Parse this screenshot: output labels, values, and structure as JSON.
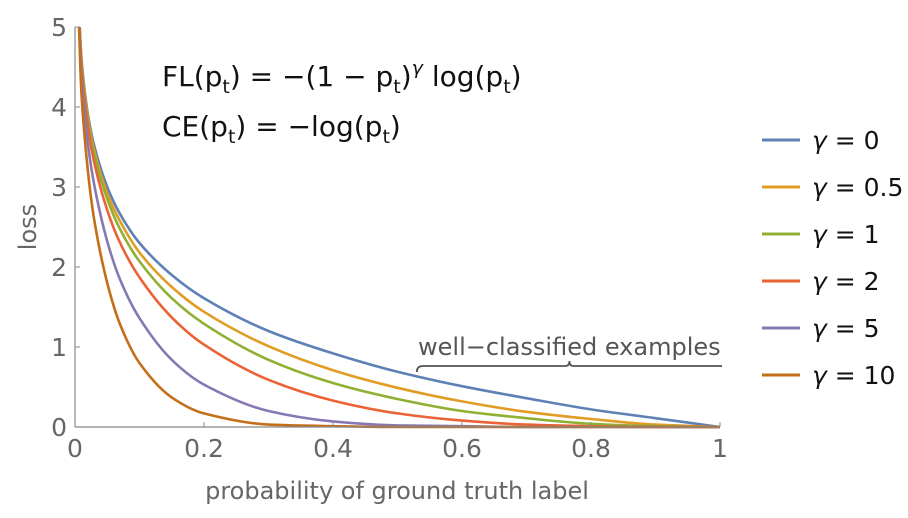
{
  "chart_data": {
    "type": "line",
    "xlabel": "probability of ground truth label",
    "ylabel": "loss",
    "xlim": [
      0,
      1
    ],
    "ylim": [
      0,
      5
    ],
    "x_ticks": [
      "0",
      "0.2",
      "0.4",
      "0.6",
      "0.8",
      "1"
    ],
    "y_ticks": [
      "0",
      "1",
      "2",
      "3",
      "4",
      "5"
    ],
    "grid": false,
    "legend_position": "right",
    "formulas": {
      "fl": {
        "lhs": "FL(p",
        "sub": "t",
        "mid": ") = −(1 − p",
        "sub2": "t",
        "paren": ")",
        "exp": "γ",
        "rhs": " log(p",
        "sub3": "t",
        "end": ")"
      },
      "ce": {
        "lhs": "CE(p",
        "sub": "t",
        "mid": ") = −log(p",
        "sub2": "t",
        "end": ")"
      }
    },
    "annotation": {
      "text": "well−classified examples",
      "x_range": [
        0.53,
        1.0
      ]
    },
    "x": [
      0.01,
      0.02,
      0.03,
      0.05,
      0.07,
      0.1,
      0.15,
      0.2,
      0.3,
      0.4,
      0.5,
      0.6,
      0.7,
      0.8,
      0.9,
      1.0
    ],
    "series": [
      {
        "name": "γ = 0",
        "color": "#5e81b5",
        "values": [
          4.61,
          3.91,
          3.51,
          3.0,
          2.66,
          2.3,
          1.9,
          1.61,
          1.2,
          0.92,
          0.69,
          0.51,
          0.36,
          0.22,
          0.11,
          0
        ]
      },
      {
        "name": "γ = 0.5",
        "color": "#e19c24",
        "values": [
          4.58,
          3.87,
          3.45,
          2.92,
          2.57,
          2.18,
          1.75,
          1.44,
          1.01,
          0.71,
          0.49,
          0.32,
          0.19,
          0.1,
          0.03,
          0
        ]
      },
      {
        "name": "γ = 1",
        "color": "#8fb032",
        "values": [
          4.56,
          3.83,
          3.4,
          2.85,
          2.47,
          2.07,
          1.61,
          1.29,
          0.84,
          0.55,
          0.35,
          0.2,
          0.11,
          0.04,
          0.01,
          0
        ]
      },
      {
        "name": "γ = 2",
        "color": "#eb6235",
        "values": [
          4.51,
          3.76,
          3.3,
          2.71,
          2.3,
          1.87,
          1.37,
          1.03,
          0.59,
          0.33,
          0.17,
          0.08,
          0.03,
          0.01,
          0.0,
          0
        ]
      },
      {
        "name": "γ = 5",
        "color": "#8778b3",
        "values": [
          4.38,
          3.54,
          3.02,
          2.32,
          1.84,
          1.36,
          0.84,
          0.53,
          0.2,
          0.07,
          0.02,
          0.01,
          0.0,
          0.0,
          0.0,
          0
        ]
      },
      {
        "name": "γ = 10",
        "color": "#c56e1a",
        "values": [
          4.17,
          3.2,
          2.58,
          1.8,
          1.28,
          0.8,
          0.37,
          0.17,
          0.03,
          0.01,
          0.0,
          0.0,
          0.0,
          0.0,
          0.0,
          0
        ]
      }
    ]
  }
}
